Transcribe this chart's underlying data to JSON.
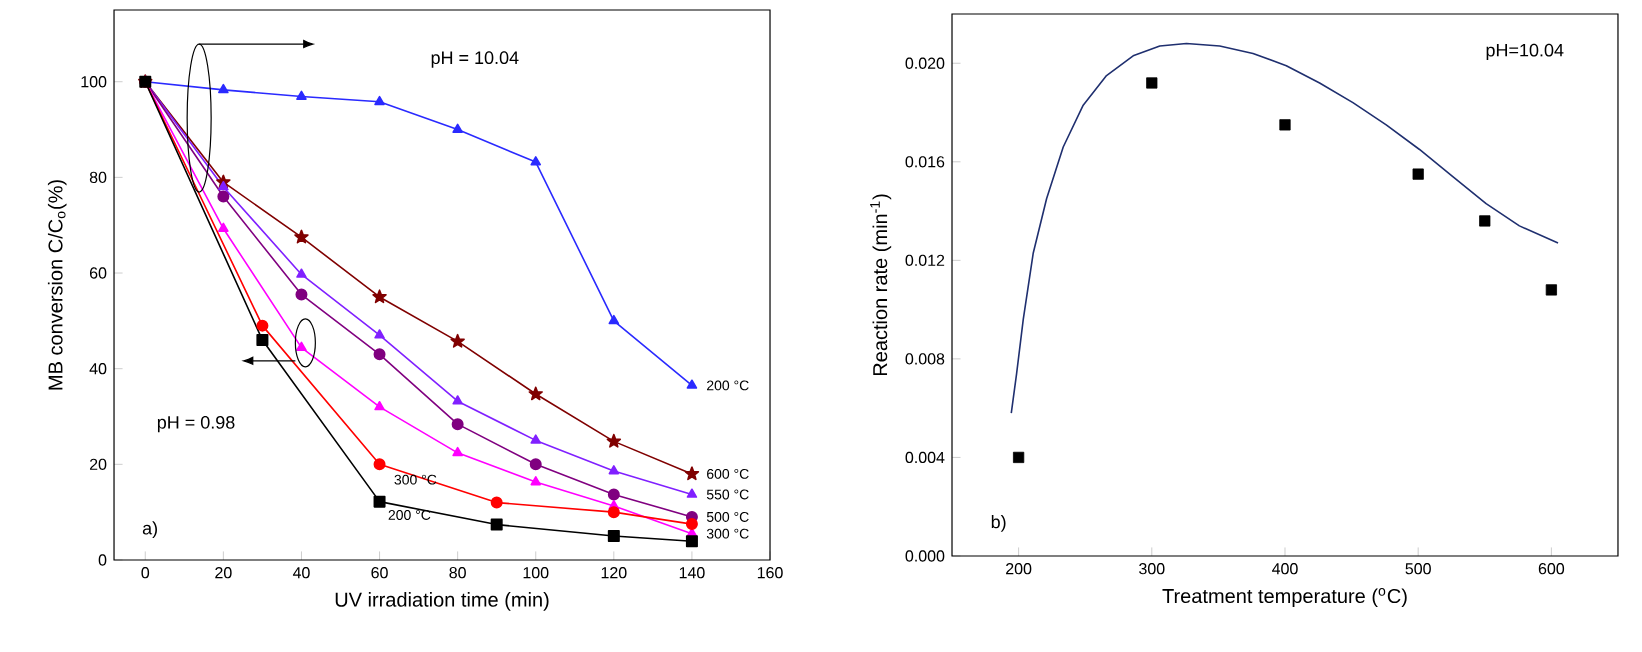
{
  "chart_data": [
    {
      "type": "line",
      "xlabel": "UV irradiation time (min)",
      "ylabel": "MB conversion C/C$_{o}$(%)",
      "xlim": [
        -8,
        160
      ],
      "ylim": [
        0,
        115
      ],
      "xticks": [
        0,
        20,
        40,
        60,
        80,
        100,
        120,
        140,
        160
      ],
      "yticks": [
        0,
        20,
        40,
        60,
        80,
        100
      ],
      "series": [
        {
          "name": "200 °C",
          "color": "#2a2aff",
          "marker": "triangle",
          "x": [
            0,
            20,
            40,
            60,
            80,
            100,
            120,
            140
          ],
          "values": [
            100,
            98.3,
            96.9,
            95.8,
            90,
            83.2,
            50,
            36.5
          ]
        },
        {
          "name": "600 °C",
          "color": "#800000",
          "marker": "star",
          "x": [
            0,
            20,
            40,
            60,
            80,
            100,
            120,
            140
          ],
          "values": [
            100,
            79,
            67.5,
            55,
            45.7,
            34.7,
            24.8,
            18
          ]
        },
        {
          "name": "550 °C",
          "color": "#8020ff",
          "marker": "triangle",
          "x": [
            0,
            20,
            40,
            60,
            80,
            100,
            120,
            140
          ],
          "values": [
            100,
            78,
            59.7,
            47,
            33.2,
            25,
            18.6,
            13.7
          ]
        },
        {
          "name": "500 °C",
          "color": "#800080",
          "marker": "circle",
          "x": [
            0,
            20,
            40,
            60,
            80,
            100,
            120,
            140
          ],
          "values": [
            100,
            76,
            55.5,
            43,
            28.4,
            20,
            13.7,
            9
          ]
        },
        {
          "name": "300 °C",
          "color": "#ff00ff",
          "marker": "triangle",
          "x": [
            0,
            20,
            40,
            60,
            80,
            100,
            120,
            140
          ],
          "values": [
            100,
            69.3,
            44.4,
            32,
            22.4,
            16.3,
            11.3,
            5.5
          ]
        },
        {
          "name": "300 °C",
          "color": "#ff0000",
          "marker": "circle",
          "x": [
            0,
            30,
            60,
            90,
            120,
            140
          ],
          "values": [
            100,
            49,
            20,
            12,
            10,
            7.5
          ]
        },
        {
          "name": "200 °C",
          "color": "#000000",
          "marker": "square",
          "x": [
            0,
            30,
            60,
            90,
            120,
            140
          ],
          "values": [
            100,
            46,
            12.2,
            7.4,
            5,
            3.9
          ]
        }
      ],
      "annotations": [
        "pH = 10.04",
        "pH = 0.98",
        "a)"
      ]
    },
    {
      "type": "scatter",
      "xlabel": "Treatment temperature ($^{o}$C)",
      "ylabel": "Reaction rate (min$^{-1}$)",
      "xlim": [
        150,
        650
      ],
      "ylim": [
        0,
        0.022
      ],
      "xticks": [
        200,
        300,
        400,
        500,
        600
      ],
      "yticks": [
        {
          "value": 0,
          "label": "0.000"
        },
        {
          "value": 0.004,
          "label": "0.004"
        },
        {
          "value": 0.008,
          "label": "0.008"
        },
        {
          "value": 0.012,
          "label": "0.012"
        },
        {
          "value": 0.016,
          "label": "0.016"
        },
        {
          "value": 0.02,
          "label": "0.020"
        }
      ],
      "series": [
        {
          "color": "#000000",
          "marker": "square",
          "x": [
            200,
            300,
            400,
            500,
            550,
            600
          ],
          "values": [
            0.004,
            0.0192,
            0.0175,
            0.0155,
            0.0136,
            0.0108
          ]
        },
        {
          "type": "line",
          "color": "#1f2f6f",
          "marker": "none",
          "x": [
            194.5,
            198.5,
            203.5,
            211,
            221,
            233.5,
            248.5,
            266,
            286,
            306,
            326,
            351,
            376,
            401,
            426,
            451,
            476,
            501,
            526,
            551,
            576,
            605
          ],
          "values": [
            0.0058,
            0.0074,
            0.0096,
            0.0123,
            0.0145,
            0.0166,
            0.0183,
            0.0195,
            0.0203,
            0.0207,
            0.0208,
            0.0207,
            0.0204,
            0.0199,
            0.0192,
            0.0184,
            0.0175,
            0.0165,
            0.0154,
            0.0143,
            0.0134,
            0.0127
          ]
        }
      ],
      "annotations": [
        "pH=10.04",
        "b)"
      ]
    }
  ]
}
